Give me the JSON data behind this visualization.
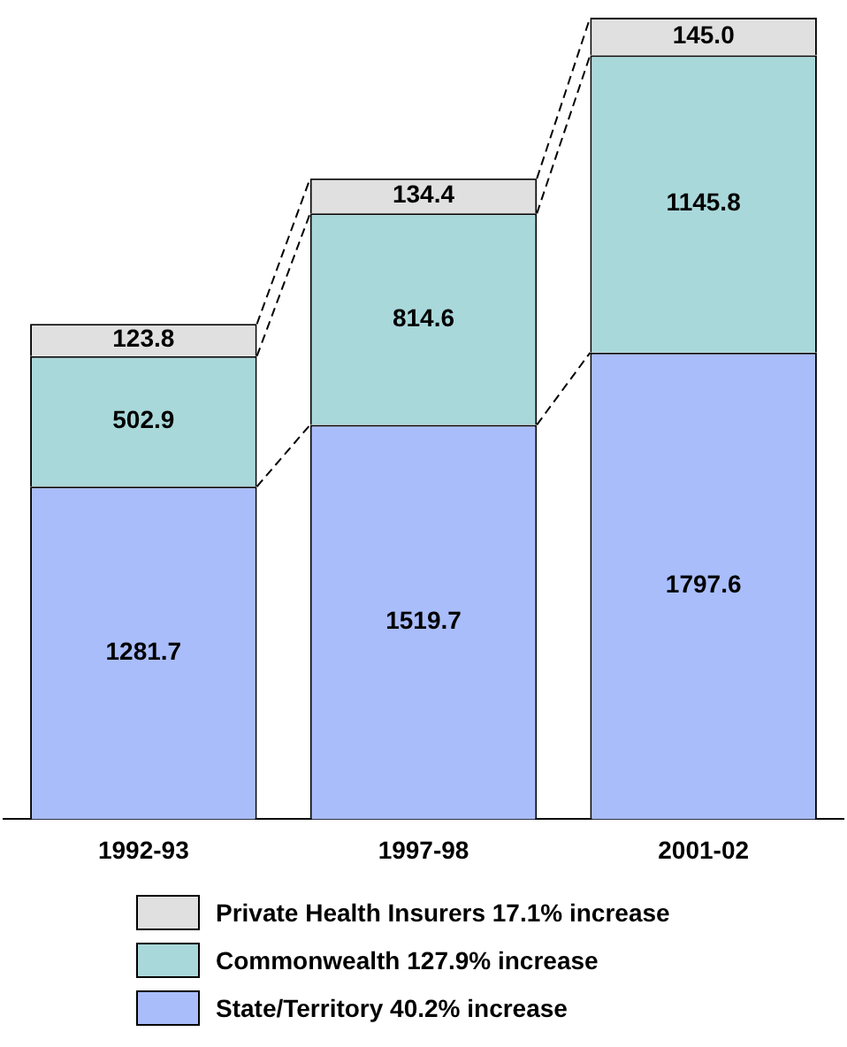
{
  "chart_data": {
    "type": "bar",
    "stacked": true,
    "legend": "bottom",
    "grid": false,
    "categories": [
      "1992-93",
      "1997-98",
      "2001-02"
    ],
    "series": [
      {
        "name": "State/Territory 40.2% increase",
        "color": "#a9bdfb",
        "values": [
          1281.7,
          1519.7,
          1797.6
        ],
        "value_labels": [
          "1281.7",
          "1519.7",
          "1797.6"
        ]
      },
      {
        "name": "Commonwealth 127.9% increase",
        "color": "#a9d8da",
        "values": [
          502.9,
          814.6,
          1145.8
        ],
        "value_labels": [
          "502.9",
          "814.6",
          "1145.8"
        ]
      },
      {
        "name": "Private Health Insurers 17.1% increase",
        "color": "#e0e0e0",
        "values": [
          123.8,
          134.4,
          145.0
        ],
        "value_labels": [
          "123.8",
          "134.4",
          "145.0"
        ]
      }
    ]
  }
}
